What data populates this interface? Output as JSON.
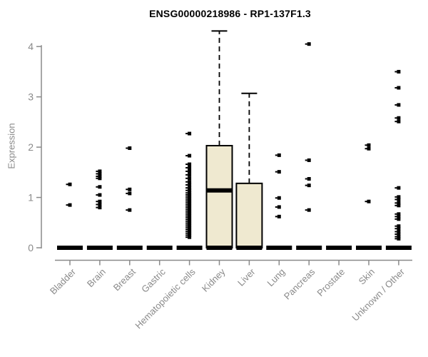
{
  "chart_data": {
    "type": "boxplot",
    "title": "ENSG00000218986 - RP1-137F1.3",
    "ylabel": "Expression",
    "xlabel": "",
    "y_ticks": [
      0,
      1,
      2,
      3,
      4
    ],
    "ylim": [
      0,
      4.4
    ],
    "grid": false,
    "legend": "none",
    "colors": {
      "box_fill": "#EFE9D0",
      "line": "#000000",
      "axis": "#8a8a8a",
      "tick_label": "#8a8a8a",
      "title": "#000000",
      "background": "#ffffff"
    },
    "categories": [
      "Bladder",
      "Brain",
      "Breast",
      "Gastric",
      "Hematopoietic cells",
      "Kidney",
      "Liver",
      "Lung",
      "Pancreas",
      "Prostate",
      "Skin",
      "Unknown / Other"
    ],
    "boxes": [
      {
        "category": "Bladder",
        "q1": 0,
        "median": 0,
        "q3": 0,
        "whisker_low": 0,
        "whisker_high": 0,
        "outliers": [
          1.26,
          0.85
        ]
      },
      {
        "category": "Brain",
        "q1": 0,
        "median": 0,
        "q3": 0,
        "whisker_low": 0,
        "whisker_high": 0,
        "outliers": [
          1.52,
          1.47,
          1.42,
          1.38,
          1.21,
          1.05,
          0.92,
          0.86,
          0.8
        ]
      },
      {
        "category": "Breast",
        "q1": 0,
        "median": 0,
        "q3": 0,
        "whisker_low": 0,
        "whisker_high": 0,
        "outliers": [
          1.98,
          1.16,
          1.08,
          0.75
        ]
      },
      {
        "category": "Gastric",
        "q1": 0,
        "median": 0,
        "q3": 0,
        "whisker_low": 0,
        "whisker_high": 0,
        "outliers": []
      },
      {
        "category": "Hematopoietic cells",
        "q1": 0,
        "median": 0,
        "q3": 0,
        "whisker_low": 0,
        "whisker_high": 0,
        "outliers": [
          2.27,
          1.83,
          1.66,
          1.59,
          1.52,
          1.45,
          1.38,
          1.31,
          1.25,
          1.19,
          1.14,
          1.09,
          1.05,
          1.01,
          0.97,
          0.93,
          0.89,
          0.85,
          0.81,
          0.77,
          0.73,
          0.69,
          0.65,
          0.61,
          0.57,
          0.53,
          0.49,
          0.45,
          0.41,
          0.37,
          0.33,
          0.29,
          0.25,
          0.21
        ]
      },
      {
        "category": "Kidney",
        "q1": 0,
        "median": 1.14,
        "q3": 2.03,
        "whisker_low": 0,
        "whisker_high": 4.31,
        "outliers": []
      },
      {
        "category": "Liver",
        "q1": 0,
        "median": 0,
        "q3": 1.28,
        "whisker_low": 0,
        "whisker_high": 3.07,
        "outliers": []
      },
      {
        "category": "Lung",
        "q1": 0,
        "median": 0,
        "q3": 0,
        "whisker_low": 0,
        "whisker_high": 0,
        "outliers": [
          1.84,
          1.51,
          0.99,
          0.81,
          0.62
        ]
      },
      {
        "category": "Pancreas",
        "q1": 0,
        "median": 0,
        "q3": 0,
        "whisker_low": 0,
        "whisker_high": 0,
        "outliers": [
          4.05,
          1.74,
          1.37,
          1.24,
          0.75
        ]
      },
      {
        "category": "Prostate",
        "q1": 0,
        "median": 0,
        "q3": 0,
        "whisker_low": 0,
        "whisker_high": 0,
        "outliers": []
      },
      {
        "category": "Skin",
        "q1": 0,
        "median": 0,
        "q3": 0,
        "whisker_low": 0,
        "whisker_high": 0,
        "outliers": [
          2.04,
          1.97,
          0.92
        ]
      },
      {
        "category": "Unknown / Other",
        "q1": 0,
        "median": 0,
        "q3": 0,
        "whisker_low": 0,
        "whisker_high": 0,
        "outliers": [
          3.5,
          3.18,
          2.84,
          2.58,
          2.51,
          1.19,
          1.01,
          0.96,
          0.89,
          0.84,
          0.67,
          0.62,
          0.57,
          0.43,
          0.38,
          0.32,
          0.27,
          0.22,
          0.18
        ]
      }
    ]
  }
}
